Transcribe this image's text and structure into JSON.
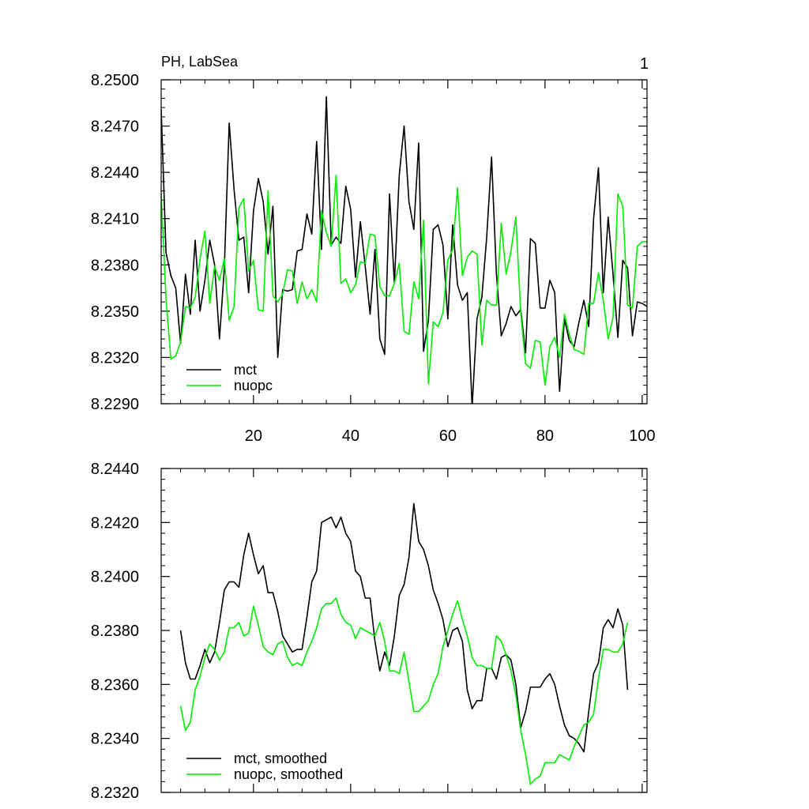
{
  "chart_data": [
    {
      "type": "line",
      "title": "PH, LabSea",
      "corner_label": "1",
      "xlabel": "",
      "ylabel": "",
      "xlim": [
        1,
        101
      ],
      "ylim": [
        8.229,
        8.25
      ],
      "x_ticks": [
        20,
        40,
        60,
        80,
        100
      ],
      "x_tick_labels": [
        "20",
        "40",
        "60",
        "80",
        "100"
      ],
      "y_ticks": [
        8.229,
        8.232,
        8.235,
        8.238,
        8.241,
        8.244,
        8.247,
        8.25
      ],
      "y_tick_labels": [
        "8.2290",
        "8.2320",
        "8.2350",
        "8.2380",
        "8.2410",
        "8.2440",
        "8.2470",
        "8.2500"
      ],
      "grid": false,
      "legend_position": "bottom-left",
      "x": [
        1,
        2,
        3,
        4,
        5,
        6,
        7,
        8,
        9,
        10,
        11,
        12,
        13,
        14,
        15,
        16,
        17,
        18,
        19,
        20,
        21,
        22,
        23,
        24,
        25,
        26,
        27,
        28,
        29,
        30,
        31,
        32,
        33,
        34,
        35,
        36,
        37,
        38,
        39,
        40,
        41,
        42,
        43,
        44,
        45,
        46,
        47,
        48,
        49,
        50,
        51,
        52,
        53,
        54,
        55,
        56,
        57,
        58,
        59,
        60,
        61,
        62,
        63,
        64,
        65,
        66,
        67,
        68,
        69,
        70,
        71,
        72,
        73,
        74,
        75,
        76,
        77,
        78,
        79,
        80,
        81,
        82,
        83,
        84,
        85,
        86,
        87,
        88,
        89,
        90,
        91,
        92,
        93,
        94,
        95,
        96,
        97,
        98,
        99,
        100,
        101
      ],
      "series": [
        {
          "name": "mct",
          "color": "#000000",
          "values": [
            8.2481,
            8.2388,
            8.2373,
            8.2365,
            8.2329,
            8.2374,
            8.2348,
            8.2396,
            8.235,
            8.237,
            8.2396,
            8.238,
            8.2332,
            8.2378,
            8.2472,
            8.2429,
            8.2396,
            8.2398,
            8.2362,
            8.2415,
            8.2436,
            8.2421,
            8.2387,
            8.2418,
            8.232,
            8.2364,
            8.2363,
            8.2364,
            8.2389,
            8.239,
            8.2413,
            8.24,
            8.246,
            8.239,
            8.2489,
            8.2393,
            8.2398,
            8.2394,
            8.2431,
            8.2416,
            8.2372,
            8.2408,
            8.2379,
            8.2348,
            8.239,
            8.2332,
            8.2322,
            8.2426,
            8.2368,
            8.2438,
            8.247,
            8.2421,
            8.2403,
            8.2459,
            8.2324,
            8.2344,
            8.2403,
            8.2406,
            8.2393,
            8.2345,
            8.2406,
            8.2367,
            8.2357,
            8.2362,
            8.2288,
            8.2345,
            8.2359,
            8.2398,
            8.245,
            8.2374,
            8.2334,
            8.2342,
            8.2353,
            8.2347,
            8.2351,
            8.2323,
            8.2397,
            8.2394,
            8.2352,
            8.2352,
            8.237,
            8.2362,
            8.2298,
            8.2345,
            8.2331,
            8.2327,
            8.2343,
            8.2357,
            8.234,
            8.241,
            8.2443,
            8.2362,
            8.2411,
            8.2374,
            8.2333,
            8.2383,
            8.2378,
            8.2334,
            8.2356,
            8.2355,
            8.2353
          ]
        },
        {
          "name": "nuopc",
          "color": "#00ee00",
          "values": [
            8.2426,
            8.2358,
            8.2319,
            8.2321,
            8.233,
            8.2353,
            8.2352,
            8.2359,
            8.2384,
            8.2402,
            8.2355,
            8.2379,
            8.237,
            8.2384,
            8.2344,
            8.2353,
            8.2417,
            8.2423,
            8.2376,
            8.2383,
            8.2351,
            8.235,
            8.2428,
            8.236,
            8.2356,
            8.2361,
            8.2377,
            8.2376,
            8.2355,
            8.2369,
            8.2358,
            8.2364,
            8.2356,
            8.2415,
            8.2401,
            8.2392,
            8.2438,
            8.2368,
            8.2371,
            8.2362,
            8.2367,
            8.2382,
            8.2381,
            8.24,
            8.2399,
            8.2366,
            8.236,
            8.236,
            8.2368,
            8.2381,
            8.2337,
            8.2335,
            8.2369,
            8.2358,
            8.2409,
            8.2303,
            8.2343,
            8.234,
            8.2349,
            8.2383,
            8.239,
            8.243,
            8.2373,
            8.2385,
            8.2389,
            8.2387,
            8.2328,
            8.2357,
            8.2354,
            8.2354,
            8.2407,
            8.2374,
            8.2389,
            8.2411,
            8.2349,
            8.2316,
            8.2313,
            8.2331,
            8.233,
            8.2302,
            8.2327,
            8.2333,
            8.232,
            8.2348,
            8.2335,
            8.2325,
            8.2324,
            8.2322,
            8.2355,
            8.2355,
            8.2375,
            8.2357,
            8.2332,
            8.2346,
            8.2426,
            8.2418,
            8.2354,
            8.2352,
            8.2392,
            8.2395,
            8.2395
          ]
        }
      ]
    },
    {
      "type": "line",
      "title": "",
      "xlabel": "",
      "ylabel": "",
      "xlim": [
        1,
        101
      ],
      "ylim": [
        8.232,
        8.244
      ],
      "x_ticks": [
        20,
        40,
        60,
        80,
        100
      ],
      "x_tick_labels": [],
      "y_ticks": [
        8.232,
        8.234,
        8.236,
        8.238,
        8.24,
        8.242,
        8.244
      ],
      "y_tick_labels": [
        "8.2320",
        "8.2340",
        "8.2360",
        "8.2380",
        "8.2400",
        "8.2420",
        "8.2440"
      ],
      "grid": false,
      "legend_position": "bottom-left",
      "x": [
        5,
        6,
        7,
        8,
        9,
        10,
        11,
        12,
        13,
        14,
        15,
        16,
        17,
        18,
        19,
        20,
        21,
        22,
        23,
        24,
        25,
        26,
        27,
        28,
        29,
        30,
        31,
        32,
        33,
        34,
        35,
        36,
        37,
        38,
        39,
        40,
        41,
        42,
        43,
        44,
        45,
        46,
        47,
        48,
        49,
        50,
        51,
        52,
        53,
        54,
        55,
        56,
        57,
        58,
        59,
        60,
        61,
        62,
        63,
        64,
        65,
        66,
        67,
        68,
        69,
        70,
        71,
        72,
        73,
        74,
        75,
        76,
        77,
        78,
        79,
        80,
        81,
        82,
        83,
        84,
        85,
        86,
        87,
        88,
        89,
        90,
        91,
        92,
        93,
        94,
        95,
        96,
        97
      ],
      "series": [
        {
          "name": "mct, smoothed",
          "color": "#000000",
          "values": [
            8.238,
            8.2368,
            8.2362,
            8.2362,
            8.2367,
            8.2373,
            8.2368,
            8.2372,
            8.2383,
            8.2395,
            8.2398,
            8.2398,
            8.2396,
            8.2408,
            8.2416,
            8.2408,
            8.2401,
            8.2404,
            8.2394,
            8.2394,
            8.2387,
            8.2378,
            8.2375,
            8.2372,
            8.2373,
            8.2373,
            8.2385,
            8.2398,
            8.2402,
            8.242,
            8.2421,
            8.2422,
            8.2418,
            8.2422,
            8.2416,
            8.2413,
            8.2402,
            8.24,
            8.2392,
            8.2392,
            8.2376,
            8.2365,
            8.2372,
            8.2367,
            8.2378,
            8.2393,
            8.2397,
            8.2407,
            8.2427,
            8.2413,
            8.241,
            8.2404,
            8.2395,
            8.239,
            8.2384,
            8.2374,
            8.238,
            8.2381,
            8.2376,
            8.2358,
            8.2351,
            8.2354,
            8.2354,
            8.2366,
            8.2366,
            8.2362,
            8.237,
            8.2371,
            8.2369,
            8.236,
            8.2344,
            8.235,
            8.2359,
            8.2359,
            8.2359,
            8.2362,
            8.2364,
            8.236,
            8.2352,
            8.2345,
            8.2341,
            8.234,
            8.2338,
            8.2335,
            8.235,
            8.2364,
            8.2368,
            8.2381,
            8.2384,
            8.2381,
            8.2388,
            8.2382,
            8.2358
          ]
        },
        {
          "name": "nuopc, smoothed",
          "color": "#00ee00",
          "values": [
            8.2352,
            8.2343,
            8.2346,
            8.2358,
            8.2363,
            8.237,
            8.2375,
            8.2373,
            8.2369,
            8.2372,
            8.2381,
            8.2381,
            8.2383,
            8.2378,
            8.2379,
            8.2389,
            8.2382,
            8.2374,
            8.2372,
            8.2371,
            8.2375,
            8.2376,
            8.237,
            8.2367,
            8.2368,
            8.2367,
            8.2372,
            8.2376,
            8.2381,
            8.2388,
            8.239,
            8.239,
            8.2392,
            8.2386,
            8.2383,
            8.2382,
            8.2377,
            8.2381,
            8.238,
            8.2379,
            8.2378,
            8.2383,
            8.2376,
            8.2365,
            8.2365,
            8.2364,
            8.2372,
            8.2361,
            8.235,
            8.235,
            8.2352,
            8.2354,
            8.236,
            8.2364,
            8.2374,
            8.238,
            8.2386,
            8.2391,
            8.2384,
            8.2378,
            8.237,
            8.2367,
            8.2367,
            8.2366,
            8.2366,
            8.2378,
            8.2376,
            8.2371,
            8.2365,
            8.2356,
            8.2343,
            8.2334,
            8.2323,
            8.2325,
            8.2326,
            8.2331,
            8.2331,
            8.2331,
            8.2334,
            8.2333,
            8.2332,
            8.2337,
            8.2341,
            8.2345,
            8.2346,
            8.2349,
            8.2362,
            8.2373,
            8.2373,
            8.2372,
            8.2372,
            8.2375,
            8.2383
          ]
        }
      ]
    }
  ]
}
